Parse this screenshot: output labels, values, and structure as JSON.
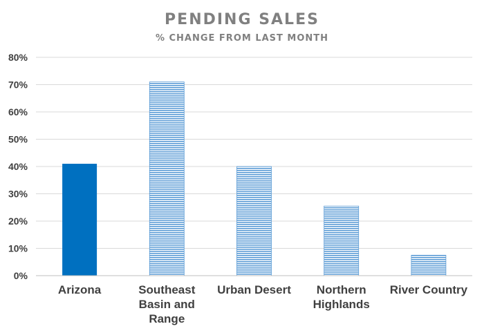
{
  "chart_data": {
    "type": "bar",
    "title": "PENDING SALES",
    "subtitle": "% CHANGE FROM LAST MONTH",
    "xlabel": "",
    "ylabel": "",
    "categories": [
      "Arizona",
      "Southeast Basin and Range",
      "Urban Desert",
      "Northern Highlands",
      "River Country"
    ],
    "category_lines": [
      [
        "Arizona"
      ],
      [
        "Southeast",
        "Basin and",
        "Range"
      ],
      [
        "Urban Desert"
      ],
      [
        "Northern",
        "Highlands"
      ],
      [
        "River Country"
      ]
    ],
    "values": [
      41,
      71,
      40,
      25.5,
      7.5
    ],
    "ylim": [
      0,
      80
    ],
    "yticks": [
      0,
      10,
      20,
      30,
      40,
      50,
      60,
      70,
      80
    ],
    "ytick_suffix": "%",
    "grid": true,
    "legend": "none",
    "colors": {
      "highlight": "#0070c0",
      "stripe": "#5b9bd5",
      "stripe_bg": "#ffffff",
      "grid": "#d9d9d9",
      "text": "#404040",
      "title": "#808080"
    },
    "bar_styles": [
      "solid",
      "striped",
      "striped",
      "striped",
      "striped"
    ]
  }
}
